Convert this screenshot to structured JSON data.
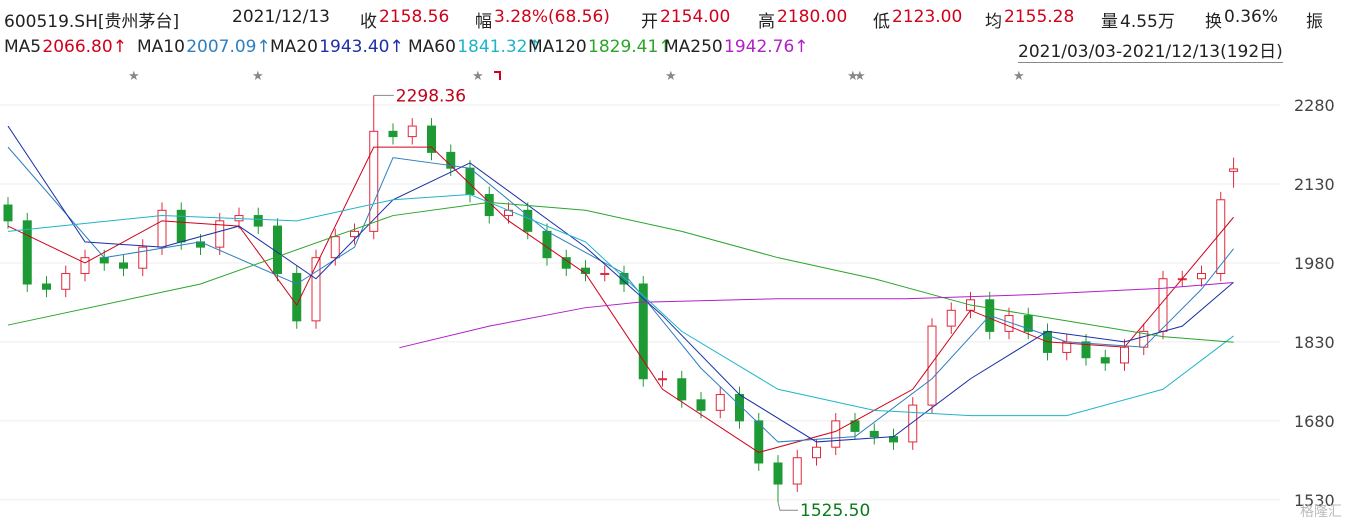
{
  "header": {
    "symbol": "600519.SH[贵州茅台]",
    "date": "2021/12/13",
    "stats": [
      {
        "label": "收",
        "value": "2158.56",
        "color": "#d0021b"
      },
      {
        "label": "幅",
        "value": "3.28%(68.56)",
        "color": "#d0021b"
      },
      {
        "label": "开",
        "value": "2154.00",
        "color": "#d0021b"
      },
      {
        "label": "高",
        "value": "2180.00",
        "color": "#d0021b"
      },
      {
        "label": "低",
        "value": "2123.00",
        "color": "#d0021b"
      },
      {
        "label": "均",
        "value": "2155.28",
        "color": "#d0021b"
      },
      {
        "label": "量",
        "value": "4.55万",
        "color": "#222222"
      },
      {
        "label": "换",
        "value": "0.36%",
        "color": "#222222"
      },
      {
        "label": "振",
        "value": "",
        "color": "#222222"
      }
    ],
    "range": "2021/03/03-2021/12/13(192日)"
  },
  "chart_data": {
    "type": "candlestick",
    "x": [
      0,
      3,
      6,
      9,
      12,
      15,
      18,
      21,
      24,
      27,
      30,
      33,
      36,
      39,
      42,
      45,
      48,
      51,
      54,
      57,
      60,
      63,
      66,
      69,
      72,
      75,
      78,
      81,
      84,
      87,
      90,
      93,
      96,
      99,
      102,
      105,
      108,
      111,
      114,
      117,
      120,
      123,
      126,
      129,
      132,
      135,
      138,
      141,
      144,
      147,
      150,
      153,
      156,
      159,
      162,
      165,
      168,
      171,
      174,
      177,
      180,
      183,
      186,
      189,
      191
    ],
    "open": [
      2090,
      2060,
      1940,
      1930,
      1960,
      1990,
      1980,
      1970,
      2010,
      2080,
      2020,
      2010,
      2060,
      2070,
      2050,
      1960,
      1870,
      1990,
      2030,
      2040,
      2230,
      2220,
      2240,
      2190,
      2160,
      2110,
      2070,
      2080,
      2040,
      1990,
      1970,
      1960,
      1960,
      1940,
      1760,
      1760,
      1720,
      1700,
      1730,
      1680,
      1600,
      1560,
      1610,
      1630,
      1680,
      1660,
      1650,
      1640,
      1710,
      1860,
      1890,
      1910,
      1850,
      1880,
      1850,
      1810,
      1830,
      1800,
      1790,
      1820,
      1850,
      1950,
      1950,
      1960,
      2154
    ],
    "high": [
      2105,
      2075,
      1955,
      1975,
      2005,
      2005,
      1995,
      2025,
      2095,
      2095,
      2035,
      2075,
      2085,
      2085,
      2065,
      1975,
      2005,
      2045,
      2055,
      2298.36,
      2245,
      2255,
      2255,
      2205,
      2175,
      2125,
      2095,
      2095,
      2055,
      2005,
      1985,
      1975,
      1975,
      1955,
      1775,
      1775,
      1735,
      1745,
      1745,
      1695,
      1615,
      1625,
      1645,
      1695,
      1695,
      1675,
      1665,
      1725,
      1875,
      1905,
      1925,
      1925,
      1895,
      1895,
      1865,
      1845,
      1845,
      1815,
      1835,
      1865,
      1965,
      1965,
      1975,
      2115,
      2180
    ],
    "low": [
      2045,
      1925,
      1915,
      1915,
      1945,
      1965,
      1955,
      1955,
      1995,
      2005,
      1995,
      1995,
      2045,
      2035,
      1945,
      1855,
      1855,
      1975,
      2015,
      2025,
      2205,
      2205,
      2175,
      2145,
      2095,
      2055,
      2055,
      2025,
      1975,
      1955,
      1945,
      1945,
      1925,
      1745,
      1745,
      1705,
      1685,
      1685,
      1665,
      1585,
      1525.5,
      1545,
      1595,
      1615,
      1645,
      1635,
      1625,
      1625,
      1695,
      1845,
      1875,
      1835,
      1835,
      1835,
      1795,
      1795,
      1785,
      1775,
      1775,
      1805,
      1835,
      1935,
      1935,
      1945,
      2123
    ],
    "close": [
      2060,
      1940,
      1930,
      1960,
      1990,
      1980,
      1970,
      2010,
      2080,
      2020,
      2010,
      2060,
      2070,
      2050,
      1960,
      1870,
      1990,
      2030,
      2040,
      2230,
      2220,
      2240,
      2190,
      2160,
      2110,
      2070,
      2080,
      2040,
      1990,
      1970,
      1960,
      1960,
      1940,
      1760,
      1760,
      1720,
      1700,
      1730,
      1680,
      1600,
      1560,
      1610,
      1630,
      1680,
      1660,
      1650,
      1640,
      1710,
      1860,
      1890,
      1910,
      1850,
      1880,
      1850,
      1810,
      1830,
      1800,
      1790,
      1820,
      1850,
      1950,
      1950,
      1960,
      2100,
      2158.56
    ],
    "up_color": "#e0283c",
    "down_color": "#1e9a35",
    "xlim": [
      -1,
      199
    ],
    "ylim": [
      1486,
      2318
    ],
    "yticks": [
      2280,
      2130,
      1980,
      1830,
      1680,
      1530
    ],
    "grid": true,
    "annotations": [
      {
        "value": 2298.36,
        "label": "2298.36",
        "color": "#c0001a"
      },
      {
        "value": 1525.5,
        "label": "1525.50",
        "color": "#0a7a1a"
      }
    ],
    "series": [
      {
        "name": "MA5",
        "last_label": "2066.80↑",
        "color": "#d0021b",
        "x": [
          0,
          12,
          24,
          36,
          45,
          57,
          66,
          78,
          90,
          102,
          117,
          129,
          141,
          150,
          162,
          174,
          183,
          191
        ],
        "values": [
          2050,
          1980,
          2060,
          2050,
          1900,
          2200,
          2200,
          2060,
          1960,
          1740,
          1620,
          1660,
          1740,
          1890,
          1830,
          1820,
          1950,
          2066.8
        ]
      },
      {
        "name": "MA10",
        "last_label": "2007.09↑",
        "color": "#2f7fbf",
        "x": [
          0,
          15,
          30,
          45,
          54,
          60,
          72,
          84,
          96,
          108,
          120,
          132,
          144,
          153,
          165,
          177,
          186,
          191
        ],
        "values": [
          2200,
          1990,
          2020,
          1940,
          2010,
          2180,
          2160,
          2040,
          1960,
          1780,
          1640,
          1650,
          1760,
          1880,
          1830,
          1820,
          1930,
          2007.09
        ]
      },
      {
        "name": "MA20",
        "last_label": "1943.40↑",
        "color": "#1a2fa8",
        "x": [
          0,
          12,
          24,
          36,
          48,
          60,
          72,
          90,
          102,
          114,
          126,
          138,
          150,
          162,
          174,
          183,
          191
        ],
        "values": [
          2240,
          2020,
          2010,
          2050,
          1950,
          2100,
          2170,
          2010,
          1880,
          1730,
          1640,
          1650,
          1760,
          1850,
          1830,
          1860,
          1943.4
        ]
      },
      {
        "name": "MA60",
        "last_label": "1841.32↑",
        "color": "#1fb5c8",
        "x": [
          0,
          24,
          45,
          60,
          72,
          90,
          105,
          120,
          135,
          150,
          165,
          180,
          191
        ],
        "values": [
          2040,
          2070,
          2060,
          2100,
          2110,
          2020,
          1850,
          1740,
          1700,
          1690,
          1690,
          1740,
          1841.32
        ]
      },
      {
        "name": "MA120",
        "last_label": "1829.41↑",
        "color": "#2aa52a",
        "x": [
          0,
          30,
          60,
          75,
          90,
          105,
          120,
          135,
          150,
          165,
          180,
          191
        ],
        "values": [
          1862,
          1940,
          2070,
          2095,
          2080,
          2040,
          1990,
          1950,
          1900,
          1870,
          1840,
          1829.41
        ]
      },
      {
        "name": "MA250",
        "last_label": "1942.76↑",
        "color": "#b01fc8",
        "x": [
          61,
          75,
          90,
          98,
          120,
          140,
          160,
          180,
          191
        ],
        "values": [
          1819,
          1860,
          1895,
          1905,
          1912,
          1912,
          1920,
          1932,
          1942.76
        ]
      }
    ],
    "watermark": "格隆汇"
  }
}
